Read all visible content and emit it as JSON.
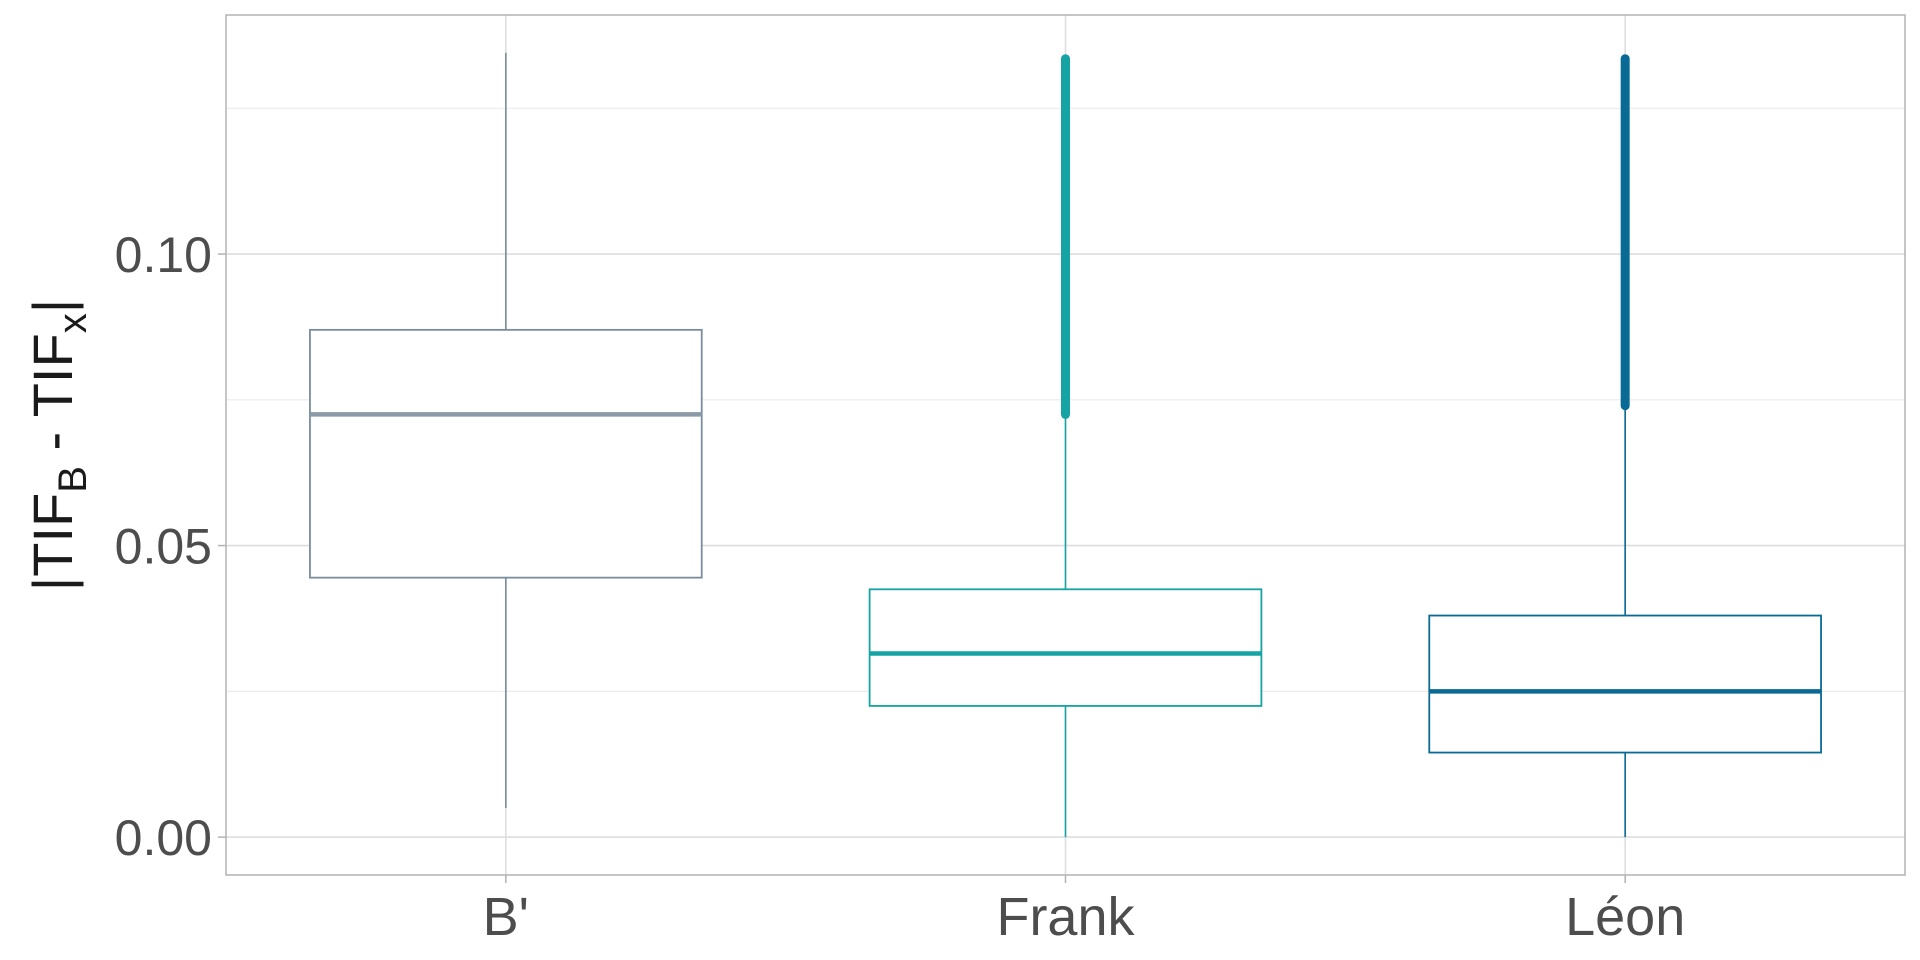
{
  "chart_data": {
    "type": "box",
    "categories": [
      "B'",
      "Frank",
      "Léon"
    ],
    "ylabel": {
      "prefix": "|TIF",
      "sub1": "B",
      "mid": " - TIF",
      "sub2": "x",
      "suffix": "|"
    },
    "ylim": [
      -0.0065,
      0.141
    ],
    "yticks": [
      0.0,
      0.05,
      0.1
    ],
    "ytick_labels": [
      "0.00",
      "0.05",
      "0.10"
    ],
    "minor_yticks": [
      0.025,
      0.075,
      0.125
    ],
    "grid": true,
    "boxes": [
      {
        "category": "B'",
        "color": "#7a8d9c",
        "median_color": "#8a9aa6",
        "lower_whisker": 0.005,
        "q1": 0.0445,
        "median": 0.0725,
        "q3": 0.087,
        "upper_whisker": 0.1345,
        "outliers_from": null,
        "outliers_to": null
      },
      {
        "category": "Frank",
        "color": "#16a3a3",
        "median_color": "#16a3a3",
        "lower_whisker": 0.0,
        "q1": 0.0225,
        "median": 0.0315,
        "q3": 0.0425,
        "upper_whisker": 0.0725,
        "outliers_from": 0.0725,
        "outliers_to": 0.1335
      },
      {
        "category": "Léon",
        "color": "#0a6a96",
        "median_color": "#0a6a96",
        "lower_whisker": 0.0,
        "q1": 0.0145,
        "median": 0.025,
        "q3": 0.038,
        "upper_whisker": 0.074,
        "outliers_from": 0.074,
        "outliers_to": 0.1335
      }
    ]
  }
}
